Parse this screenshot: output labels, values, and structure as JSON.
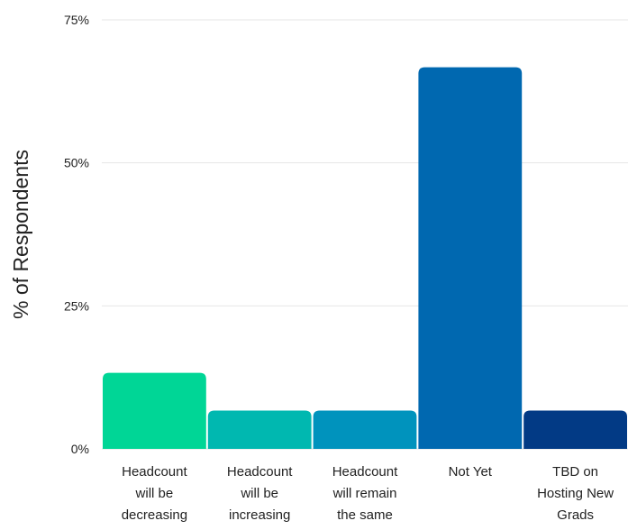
{
  "chart_data": {
    "type": "bar",
    "title": "",
    "xlabel": "",
    "ylabel": "% of Respondents",
    "ylim": [
      0,
      75
    ],
    "yticks": [
      {
        "value": 0,
        "label": "0%"
      },
      {
        "value": 25,
        "label": "25%"
      },
      {
        "value": 50,
        "label": "50%"
      },
      {
        "value": 75,
        "label": "75%"
      }
    ],
    "grid": true,
    "legend": "none",
    "categories": [
      "Headcount will be decreasing",
      "Headcount will be increasing",
      "Headcount will remain the same",
      "Not Yet",
      "TBD on Hosting New Grads"
    ],
    "category_lines": [
      [
        "Headcount",
        "will be",
        "decreasing"
      ],
      [
        "Headcount",
        "will be",
        "increasing"
      ],
      [
        "Headcount",
        "will remain",
        "the same"
      ],
      [
        "Not Yet"
      ],
      [
        "TBD on",
        "Hosting New",
        "Grads"
      ]
    ],
    "values": [
      13.3,
      6.7,
      6.7,
      66.7,
      6.7
    ],
    "colors": [
      "#00D696",
      "#00B8B0",
      "#0093BD",
      "#0068B0",
      "#023A85"
    ]
  }
}
